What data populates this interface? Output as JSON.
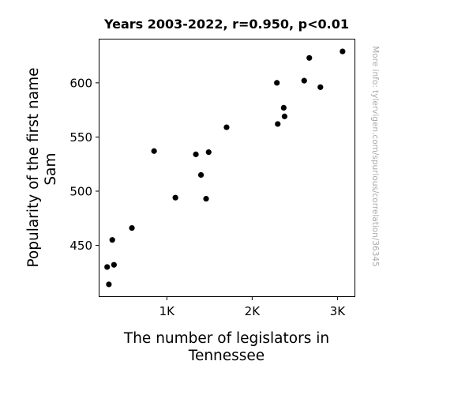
{
  "chart_data": {
    "type": "scatter",
    "title": "Years 2003-2022, r=0.950, p<0.01",
    "xlabel": [
      "The number of legislators in",
      "Tennessee"
    ],
    "ylabel": [
      "Popularity of the first name",
      "Sam"
    ],
    "xlim": [
      210,
      3200
    ],
    "ylim": [
      403,
      640
    ],
    "xticks": [
      {
        "value": 1000,
        "label": "1K"
      },
      {
        "value": 2000,
        "label": "2K"
      },
      {
        "value": 3000,
        "label": "3K"
      }
    ],
    "yticks": [
      {
        "value": 450,
        "label": "450"
      },
      {
        "value": 500,
        "label": "500"
      },
      {
        "value": 550,
        "label": "550"
      },
      {
        "value": 600,
        "label": "600"
      }
    ],
    "grid": false,
    "legend": "none",
    "point_color": "#000000",
    "points": [
      {
        "x": 300,
        "y": 430
      },
      {
        "x": 320,
        "y": 414
      },
      {
        "x": 360,
        "y": 455
      },
      {
        "x": 380,
        "y": 432
      },
      {
        "x": 590,
        "y": 466
      },
      {
        "x": 850,
        "y": 537
      },
      {
        "x": 1100,
        "y": 494
      },
      {
        "x": 1340,
        "y": 534
      },
      {
        "x": 1400,
        "y": 515
      },
      {
        "x": 1460,
        "y": 493
      },
      {
        "x": 1490,
        "y": 536
      },
      {
        "x": 1700,
        "y": 559
      },
      {
        "x": 2290,
        "y": 600
      },
      {
        "x": 2300,
        "y": 562
      },
      {
        "x": 2370,
        "y": 577
      },
      {
        "x": 2380,
        "y": 569
      },
      {
        "x": 2610,
        "y": 602
      },
      {
        "x": 2670,
        "y": 623
      },
      {
        "x": 2800,
        "y": 596
      },
      {
        "x": 3060,
        "y": 629
      }
    ]
  },
  "watermark": "More info: tylervigen.com/spurious/correlation/36345"
}
